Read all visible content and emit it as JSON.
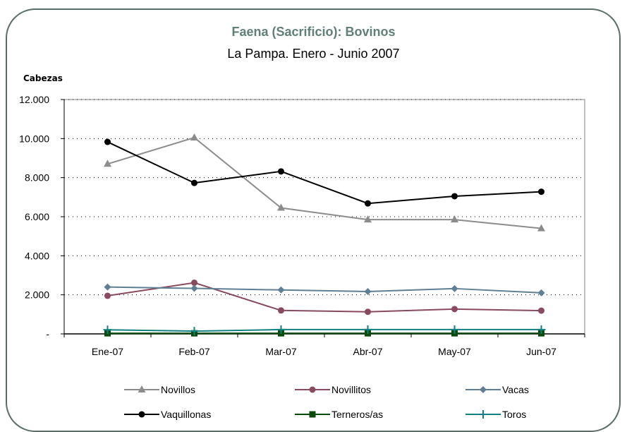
{
  "chart_data": {
    "type": "line",
    "title": "Faena (Sacrificio):  Bovinos",
    "subtitle": "La Pampa. Enero - Junio 2007",
    "ylabel": "Cabezas",
    "xlabel": "",
    "categories": [
      "Ene-07",
      "Feb-07",
      "Mar-07",
      "Abr-07",
      "May-07",
      "Jun-07"
    ],
    "ylim": [
      0,
      12000
    ],
    "yticks": [
      0,
      2000,
      4000,
      6000,
      8000,
      10000,
      12000
    ],
    "ytick_labels": [
      "-",
      "2.000",
      "4.000",
      "6.000",
      "8.000",
      "10.000",
      "12.000"
    ],
    "grid": "horizontal dotted",
    "legend_position": "bottom",
    "series": [
      {
        "name": "Novillos",
        "color": "#8c8c8c",
        "marker": "triangle",
        "values": [
          8700,
          10050,
          6450,
          5850,
          5850,
          5400
        ]
      },
      {
        "name": "Novillitos",
        "color": "#8a4a5e",
        "marker": "circle",
        "values": [
          1950,
          2620,
          1200,
          1130,
          1270,
          1190
        ]
      },
      {
        "name": "Vacas",
        "color": "#5f7f95",
        "marker": "diamond",
        "values": [
          2400,
          2330,
          2250,
          2170,
          2320,
          2100
        ]
      },
      {
        "name": "Vaquillonas",
        "color": "#000000",
        "marker": "circle",
        "values": [
          9830,
          7730,
          8320,
          6680,
          7050,
          7280
        ]
      },
      {
        "name": "Terneros/as",
        "color": "#0a4a0a",
        "marker": "square",
        "values": [
          30,
          30,
          30,
          30,
          30,
          30
        ]
      },
      {
        "name": "Toros",
        "color": "#128080",
        "marker": "plus",
        "values": [
          210,
          140,
          220,
          220,
          220,
          220
        ]
      }
    ]
  }
}
